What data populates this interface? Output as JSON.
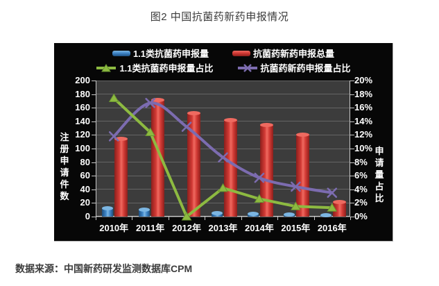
{
  "title": "图2 中国抗菌药新药申报情况",
  "source": "数据来源：中国新药研发监测数据库CPM",
  "chart_data": {
    "type": "bar",
    "subtype": "bar-line-combo",
    "title": "图2 中国抗菌药新药申报情况",
    "categories": [
      "2010年",
      "2011年",
      "2012年",
      "2013年",
      "2014年",
      "2015年",
      "2016年"
    ],
    "series": [
      {
        "name": "1.1类抗菌药申报量",
        "kind": "bar",
        "axis": "left",
        "color": "#3f86c8",
        "color_light": "#7cb6e2",
        "color_dark": "#1d4f80",
        "values": [
          12,
          10,
          0,
          5,
          4,
          3,
          2
        ]
      },
      {
        "name": "抗菌药新药申报总量",
        "kind": "bar",
        "axis": "left",
        "color": "#d23a35",
        "color_light": "#ef6a60",
        "color_dark": "#8c1f1c",
        "values": [
          114,
          171,
          152,
          142,
          135,
          120,
          21
        ]
      },
      {
        "name": "1.1类抗菌药申报量占比",
        "kind": "line",
        "axis": "right",
        "color": "#8dba41",
        "color_dark": "#6a9630",
        "marker": "triangle",
        "smooth": false,
        "values": [
          17.4,
          12.4,
          0,
          4.2,
          2.6,
          1.5,
          1.3
        ]
      },
      {
        "name": "抗菌药新药申报量占比",
        "kind": "line",
        "axis": "right",
        "color": "#7c6cb0",
        "color_dark": "#5d4f92",
        "marker": "x",
        "smooth": true,
        "values": [
          11.8,
          16.7,
          13.2,
          8.7,
          5.7,
          4.4,
          3.5
        ]
      }
    ],
    "left_axis": {
      "title": "注册申请件数",
      "min": 0,
      "max": 200,
      "step": 20
    },
    "right_axis": {
      "title": "申请量占比",
      "min": 0,
      "max": 20,
      "step": 2,
      "suffix": "%"
    },
    "legend_position": "top",
    "grid": true,
    "panel_bg": "#070707",
    "plot_bg": "#3c3c3c",
    "grid_color": "#656565",
    "axis_color": "#c9c9c9",
    "text_color": "#ffffff"
  }
}
